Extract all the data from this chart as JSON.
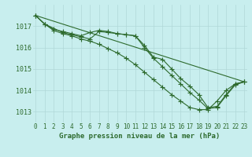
{
  "series": [
    {
      "x": [
        0,
        1,
        2,
        3,
        4,
        5,
        6,
        7,
        8,
        9,
        10,
        11,
        12,
        13,
        14,
        15,
        16,
        17,
        18,
        19,
        20,
        21,
        22,
        23
      ],
      "y": [
        1017.5,
        1017.1,
        1016.85,
        1016.75,
        1016.65,
        1016.55,
        1016.7,
        1016.8,
        1016.75,
        1016.65,
        1016.6,
        1016.55,
        1016.1,
        1015.55,
        1015.45,
        1015.0,
        1014.55,
        1014.2,
        1013.8,
        1013.2,
        1013.25,
        1013.8,
        1014.3,
        1014.4
      ]
    },
    {
      "x": [
        0,
        1,
        3,
        4,
        5,
        6,
        7,
        8,
        9,
        10,
        11,
        12,
        13,
        14,
        15,
        16,
        17,
        18,
        19,
        20,
        21,
        22,
        23
      ],
      "y": [
        1017.5,
        1017.1,
        1016.7,
        1016.6,
        1016.5,
        1016.4,
        1016.75,
        1016.7,
        1016.65,
        1016.6,
        1016.55,
        1016.0,
        1015.5,
        1015.1,
        1014.7,
        1014.3,
        1013.9,
        1013.55,
        1013.15,
        1013.2,
        1013.75,
        1014.25,
        1014.4
      ]
    },
    {
      "x": [
        0,
        23
      ],
      "y": [
        1017.5,
        1014.4
      ]
    },
    {
      "x": [
        0,
        1,
        2,
        3,
        4,
        5,
        6,
        7,
        8,
        9,
        10,
        11,
        12,
        13,
        14,
        15,
        16,
        17,
        18,
        19,
        20,
        21,
        22,
        23
      ],
      "y": [
        1017.5,
        1017.1,
        1016.8,
        1016.65,
        1016.55,
        1016.4,
        1016.3,
        1016.15,
        1015.95,
        1015.75,
        1015.5,
        1015.2,
        1014.85,
        1014.5,
        1014.15,
        1013.8,
        1013.5,
        1013.2,
        1013.1,
        1013.1,
        1013.5,
        1014.0,
        1014.3,
        1014.4
      ]
    }
  ],
  "line_color": "#2d6a2d",
  "marker": "+",
  "marker_size": 4,
  "linewidth": 0.8,
  "xlabel": "Graphe pression niveau de la mer (hPa)",
  "xlabel_color": "#2d6a2d",
  "background_color": "#c8eeee",
  "grid_color": "#b0d8d8",
  "tick_color": "#2d6a2d",
  "ylim": [
    1012.5,
    1018.0
  ],
  "xlim": [
    -0.3,
    23.3
  ],
  "yticks": [
    1013,
    1014,
    1015,
    1016,
    1017
  ],
  "xticks": [
    0,
    1,
    2,
    3,
    4,
    5,
    6,
    7,
    8,
    9,
    10,
    11,
    12,
    13,
    14,
    15,
    16,
    17,
    18,
    19,
    20,
    21,
    22,
    23
  ],
  "tick_fontsize": 5.5,
  "ytick_fontsize": 6.0,
  "xlabel_fontsize": 6.5
}
